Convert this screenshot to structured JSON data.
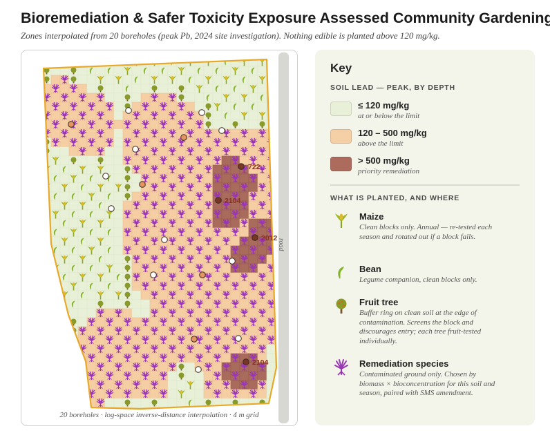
{
  "header": {
    "title": "Bioremediation & Safer Toxicity Exposure Assessed Community Gardening",
    "subtitle": "Zones interpolated from 20 boreholes (peak Pb, 2024 site investigation). Nothing edible is planted above 120 mg/kg."
  },
  "map": {
    "road_label": "road",
    "caption": "20 boreholes · log-space inverse-distance interpolation · 4 m grid",
    "colors": {
      "clean": "#e9f0d8",
      "above": "#f5ceA3",
      "priority": "#a86b5c",
      "boundary": "#e8a82a",
      "road": "#d6d6d2"
    },
    "borehole_labels": [
      {
        "name": "borehole-label-722",
        "text": "722"
      },
      {
        "name": "borehole-label-2104-north",
        "text": "2104"
      },
      {
        "name": "borehole-label-2012",
        "text": "2012"
      },
      {
        "name": "borehole-label-2104-south",
        "text": "2104"
      }
    ]
  },
  "key": {
    "title": "Key",
    "soil_section": "SOIL LEAD — PEAK, BY DEPTH",
    "soil_classes": [
      {
        "label": "≤ 120 mg/kg",
        "desc": "at or below the limit",
        "color": "#e9f0d8"
      },
      {
        "label": "120 – 500 mg/kg",
        "desc": "above the limit",
        "color": "#f5cfa6"
      },
      {
        "label": "> 500 mg/kg",
        "desc": "priority remediation",
        "color": "#ad6b5e"
      }
    ],
    "plant_section": "WHAT IS PLANTED, AND WHERE",
    "plants": [
      {
        "icon": "maize-icon",
        "name": "Maize",
        "desc": "Clean blocks only. Annual — re-tested each season and rotated out if a block fails."
      },
      {
        "icon": "bean-icon",
        "name": "Bean",
        "desc": "Legume companion, clean blocks only."
      },
      {
        "icon": "fruit-tree-icon",
        "name": "Fruit tree",
        "desc": "Buffer ring on clean soil at the edge of contamination. Screens the block and discourages entry; each tree fruit-tested individually."
      },
      {
        "icon": "remediation-species-icon",
        "name": "Remediation species",
        "desc": "Contaminated ground only. Chosen by biomass × bioconcentration for this soil and season, paired with SMS amendment."
      }
    ]
  }
}
